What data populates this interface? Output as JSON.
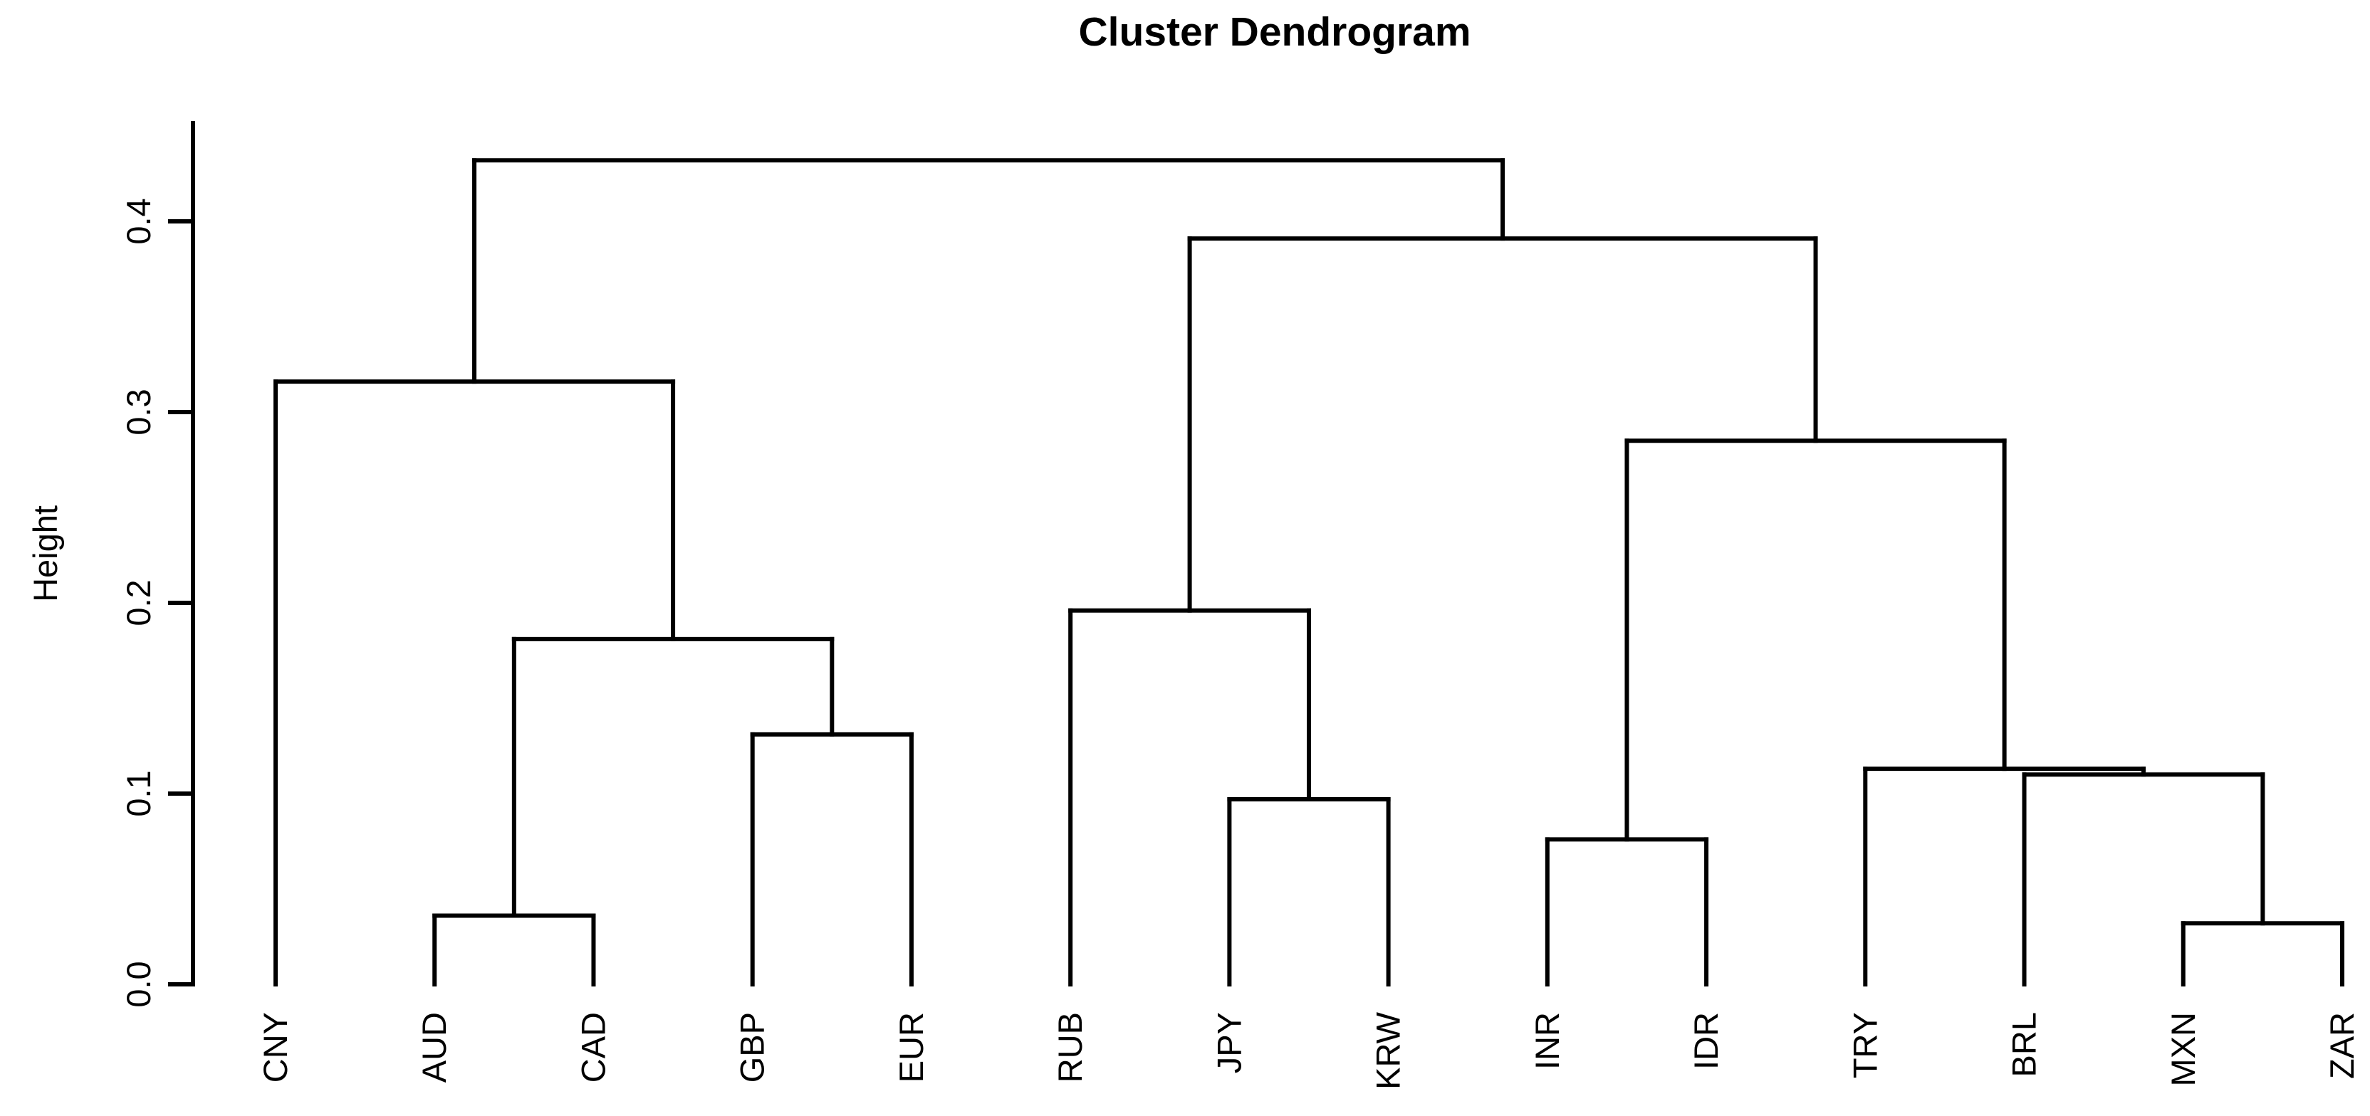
{
  "chart_data": {
    "type": "dendrogram",
    "title": "Cluster Dendrogram",
    "ylabel": "Height",
    "ytick_labels": [
      "0.0",
      "0.1",
      "0.2",
      "0.3",
      "0.4"
    ],
    "ylim": [
      0,
      0.45
    ],
    "grid": false,
    "legend": false,
    "line_color": "#000000",
    "background_color": "#ffffff",
    "leaves": [
      "CNY",
      "AUD",
      "CAD",
      "GBP",
      "EUR",
      "RUB",
      "JPY",
      "KRW",
      "INR",
      "IDR",
      "TRY",
      "BRL",
      "MXN",
      "ZAR"
    ],
    "merge_heights": [
      {
        "cluster": "AUD+CAD",
        "height": 0.036
      },
      {
        "cluster": "GBP+EUR",
        "height": 0.131
      },
      {
        "cluster": "(AUD,CAD)+(GBP,EUR)",
        "height": 0.181
      },
      {
        "cluster": "CNY+(AUD,CAD,GBP,EUR)",
        "height": 0.316
      },
      {
        "cluster": "JPY+KRW",
        "height": 0.097
      },
      {
        "cluster": "RUB+(JPY,KRW)",
        "height": 0.196
      },
      {
        "cluster": "INR+IDR",
        "height": 0.076
      },
      {
        "cluster": "MXN+ZAR",
        "height": 0.032
      },
      {
        "cluster": "BRL+(MXN,ZAR)",
        "height": 0.11
      },
      {
        "cluster": "TRY+(BRL,MXN,ZAR)",
        "height": 0.113
      },
      {
        "cluster": "(INR,IDR)+(TRY,BRL,MXN,ZAR)",
        "height": 0.285
      },
      {
        "cluster": "(RUB,JPY,KRW)+(INR,IDR,TRY,BRL,MXN,ZAR)",
        "height": 0.391
      },
      {
        "cluster": "root",
        "height": 0.432
      }
    ],
    "tree": {
      "height": 0.432,
      "children": [
        {
          "height": 0.316,
          "children": [
            {
              "leaf": "CNY"
            },
            {
              "height": 0.181,
              "children": [
                {
                  "height": 0.036,
                  "children": [
                    {
                      "leaf": "AUD"
                    },
                    {
                      "leaf": "CAD"
                    }
                  ]
                },
                {
                  "height": 0.131,
                  "children": [
                    {
                      "leaf": "GBP"
                    },
                    {
                      "leaf": "EUR"
                    }
                  ]
                }
              ]
            }
          ]
        },
        {
          "height": 0.391,
          "children": [
            {
              "height": 0.196,
              "children": [
                {
                  "leaf": "RUB"
                },
                {
                  "height": 0.097,
                  "children": [
                    {
                      "leaf": "JPY"
                    },
                    {
                      "leaf": "KRW"
                    }
                  ]
                }
              ]
            },
            {
              "height": 0.285,
              "children": [
                {
                  "height": 0.076,
                  "children": [
                    {
                      "leaf": "INR"
                    },
                    {
                      "leaf": "IDR"
                    }
                  ]
                },
                {
                  "height": 0.113,
                  "children": [
                    {
                      "leaf": "TRY"
                    },
                    {
                      "height": 0.11,
                      "children": [
                        {
                          "leaf": "BRL"
                        },
                        {
                          "height": 0.032,
                          "children": [
                            {
                              "leaf": "MXN"
                            },
                            {
                              "leaf": "ZAR"
                            }
                          ]
                        }
                      ]
                    }
                  ]
                }
              ]
            }
          ]
        }
      ]
    }
  }
}
